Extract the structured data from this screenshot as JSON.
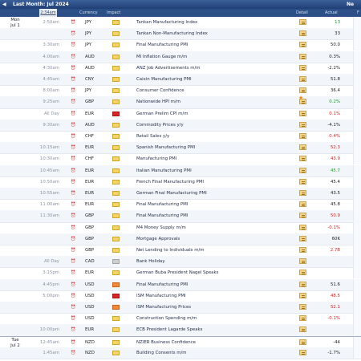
{
  "nav": {
    "prev_symbol": "◀",
    "title": "Last Month: Jul 2024",
    "next_label": "Ne"
  },
  "headers": {
    "time": "2:34am",
    "currency": "Currency",
    "impact": "Impact",
    "detail": "Detail",
    "actual": "Actual",
    "forecast": "F"
  },
  "days": [
    {
      "day": "Mon",
      "date": "Jul 1"
    },
    {
      "day": "Tue",
      "date": "Jul 2"
    }
  ],
  "rows": [
    {
      "time": "2:50am",
      "currency": "JPY",
      "impact": "yellow",
      "event": "Tankan Manufacturing Index",
      "actual": "13",
      "actual_color": "green"
    },
    {
      "time": "",
      "currency": "JPY",
      "impact": "yellow",
      "event": "Tankan Non-Manufacturing Index",
      "actual": "33",
      "actual_color": "black"
    },
    {
      "time": "3:30am",
      "currency": "JPY",
      "impact": "yellow",
      "event": "Final Manufacturing PMI",
      "actual": "50.0",
      "actual_color": "black"
    },
    {
      "time": "4:00am",
      "currency": "AUD",
      "impact": "yellow",
      "event": "MI Inflation Gauge m/m",
      "actual": "0.3%",
      "actual_color": "black"
    },
    {
      "time": "4:30am",
      "currency": "AUD",
      "impact": "yellow",
      "event": "ANZ Job Advertisements m/m",
      "actual": "-2.2%",
      "actual_color": "black"
    },
    {
      "time": "4:45am",
      "currency": "CNY",
      "impact": "yellow",
      "event": "Caixin Manufacturing PMI",
      "actual": "51.8",
      "actual_color": "black"
    },
    {
      "time": "8:00am",
      "currency": "JPY",
      "impact": "yellow",
      "event": "Consumer Confidence",
      "actual": "36.4",
      "actual_color": "black"
    },
    {
      "time": "9:25am",
      "currency": "GBP",
      "impact": "yellow",
      "event": "Nationwide HPI m/m",
      "actual": "0.2%",
      "actual_color": "green",
      "detail_star": true
    },
    {
      "time": "All Day",
      "currency": "EUR",
      "impact": "red",
      "event": "German Prelim CPI m/m",
      "actual": "0.1%",
      "actual_color": "red"
    },
    {
      "time": "9:30am",
      "currency": "AUD",
      "impact": "yellow",
      "event": "Commodity Prices y/y",
      "actual": "-4.1%",
      "actual_color": "black"
    },
    {
      "time": "",
      "currency": "CHF",
      "impact": "yellow",
      "event": "Retail Sales y/y",
      "actual": "0.4%",
      "actual_color": "red"
    },
    {
      "time": "10:15am",
      "currency": "EUR",
      "impact": "yellow",
      "event": "Spanish Manufacturing PMI",
      "actual": "52.3",
      "actual_color": "red"
    },
    {
      "time": "10:30am",
      "currency": "CHF",
      "impact": "yellow",
      "event": "Manufacturing PMI",
      "actual": "43.9",
      "actual_color": "red"
    },
    {
      "time": "10:45am",
      "currency": "EUR",
      "impact": "yellow",
      "event": "Italian Manufacturing PMI",
      "actual": "45.7",
      "actual_color": "green"
    },
    {
      "time": "10:50am",
      "currency": "EUR",
      "impact": "yellow",
      "event": "French Final Manufacturing PMI",
      "actual": "45.4",
      "actual_color": "black"
    },
    {
      "time": "10:55am",
      "currency": "EUR",
      "impact": "yellow",
      "event": "German Final Manufacturing PMI",
      "actual": "43.5",
      "actual_color": "black"
    },
    {
      "time": "11:00am",
      "currency": "EUR",
      "impact": "yellow",
      "event": "Final Manufacturing PMI",
      "actual": "45.8",
      "actual_color": "black"
    },
    {
      "time": "11:30am",
      "currency": "GBP",
      "impact": "yellow",
      "event": "Final Manufacturing PMI",
      "actual": "50.9",
      "actual_color": "red"
    },
    {
      "time": "",
      "currency": "GBP",
      "impact": "yellow",
      "event": "M4 Money Supply m/m",
      "actual": "-0.1%",
      "actual_color": "red"
    },
    {
      "time": "",
      "currency": "GBP",
      "impact": "yellow",
      "event": "Mortgage Approvals",
      "actual": "60K",
      "actual_color": "black"
    },
    {
      "time": "",
      "currency": "GBP",
      "impact": "yellow",
      "event": "Net Lending to Individuals m/m",
      "actual": "2.7B",
      "actual_color": "red"
    },
    {
      "time": "All Day",
      "currency": "CAD",
      "impact": "gray",
      "event": "Bank Holiday",
      "actual": "",
      "actual_color": "black"
    },
    {
      "time": "3:15pm",
      "currency": "EUR",
      "impact": "yellow",
      "event": "German Buba President Nagel Speaks",
      "actual": "",
      "actual_color": "black"
    },
    {
      "time": "4:45pm",
      "currency": "USD",
      "impact": "orange",
      "event": "Final Manufacturing PMI",
      "actual": "51.6",
      "actual_color": "black"
    },
    {
      "time": "5:00pm",
      "currency": "USD",
      "impact": "red",
      "event": "ISM Manufacturing PMI",
      "actual": "48.5",
      "actual_color": "red"
    },
    {
      "time": "",
      "currency": "USD",
      "impact": "orange",
      "event": "ISM Manufacturing Prices",
      "actual": "52.1",
      "actual_color": "red"
    },
    {
      "time": "",
      "currency": "USD",
      "impact": "yellow",
      "event": "Construction Spending m/m",
      "actual": "-0.1%",
      "actual_color": "red"
    },
    {
      "time": "10:00pm",
      "currency": "EUR",
      "impact": "yellow",
      "event": "ECB President Lagarde Speaks",
      "actual": "",
      "actual_color": "black"
    },
    {
      "time": "12:45am",
      "currency": "NZD",
      "impact": "yellow",
      "event": "NZIER Business Confidence",
      "actual": "-44",
      "actual_color": "black"
    },
    {
      "time": "1:45am",
      "currency": "NZD",
      "impact": "yellow",
      "event": "Building Consents m/m",
      "actual": "-1.7%",
      "actual_color": "black"
    }
  ]
}
